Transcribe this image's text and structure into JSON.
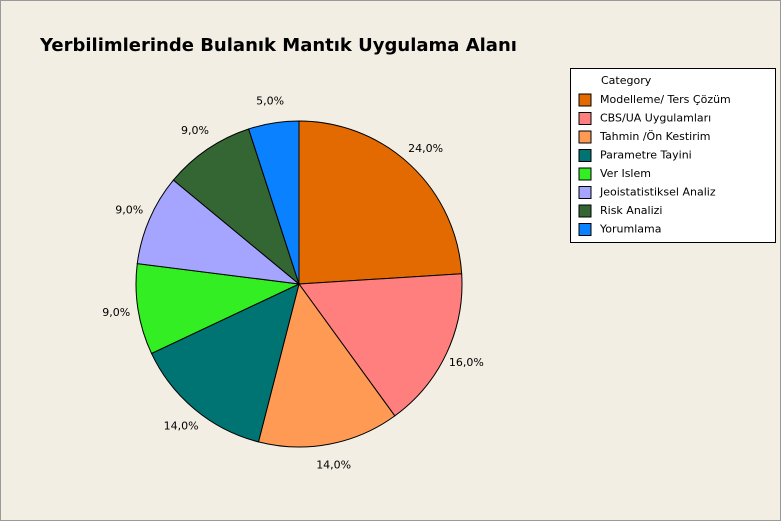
{
  "chart_data": {
    "type": "pie",
    "title": "Yerbilimlerinde Bulanık Mantık Uygulama Alanı",
    "legend_title": "Category",
    "categories": [
      "Modelleme/ Ters Çözüm",
      "CBS/UA Uygulamları",
      "Tahmin /Ön Kestirim",
      "Parametre Tayini",
      "Ver Islem",
      "Jeoistatistiksel Analiz",
      "Risk Analizi",
      "Yorumlama"
    ],
    "values": [
      24,
      16,
      14,
      14,
      9,
      9,
      9,
      5
    ],
    "value_labels": [
      "24,0%",
      "16,0%",
      "14,0%",
      "14,0%",
      "9,0%",
      "9,0%",
      "9,0%",
      "5,0%"
    ],
    "colors": [
      "#E36A00",
      "#FF7F7F",
      "#FF9A55",
      "#007373",
      "#33EE22",
      "#A5A5FF",
      "#336633",
      "#0A82FF"
    ],
    "legend": "right"
  }
}
